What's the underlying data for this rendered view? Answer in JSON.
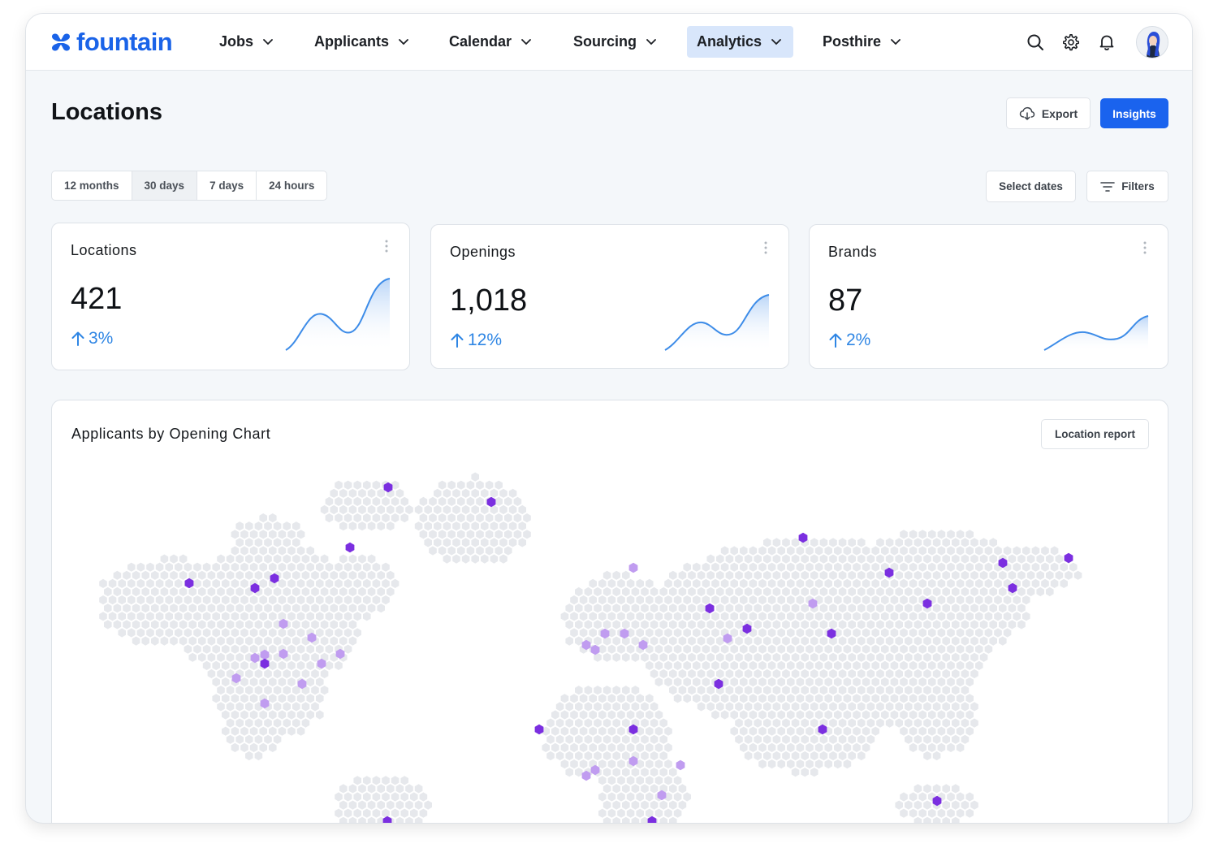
{
  "app": {
    "brand": "fountain",
    "nav": [
      {
        "label": "Jobs",
        "active": false
      },
      {
        "label": "Applicants",
        "active": false
      },
      {
        "label": "Calendar",
        "active": false
      },
      {
        "label": "Sourcing",
        "active": false
      },
      {
        "label": "Analytics",
        "active": true
      },
      {
        "label": "Posthire",
        "active": false
      }
    ],
    "icons": [
      "search-icon",
      "gear-icon",
      "bell-icon",
      "avatar"
    ]
  },
  "page": {
    "title": "Locations",
    "export_label": "Export",
    "insights_label": "Insights",
    "ranges": [
      "12 months",
      "30 days",
      "7 days",
      "24 hours"
    ],
    "active_range": "30 days",
    "select_dates_label": "Select dates",
    "filters_label": "Filters"
  },
  "cards": [
    {
      "label": "Locations",
      "value": "421",
      "delta": "3%"
    },
    {
      "label": "Openings",
      "value": "1,018",
      "delta": "12%"
    },
    {
      "label": "Brands",
      "value": "87",
      "delta": "2%"
    }
  ],
  "map": {
    "title": "Applicants by Opening Chart",
    "report_label": "Location report"
  },
  "colors": {
    "brand": "#1a63e8",
    "primary_button": "#1a63ee",
    "delta": "#2f86e4",
    "hex_base": "#e6e8ec",
    "hex_dark": "#7b2fe0",
    "hex_light": "#c09cf0"
  }
}
